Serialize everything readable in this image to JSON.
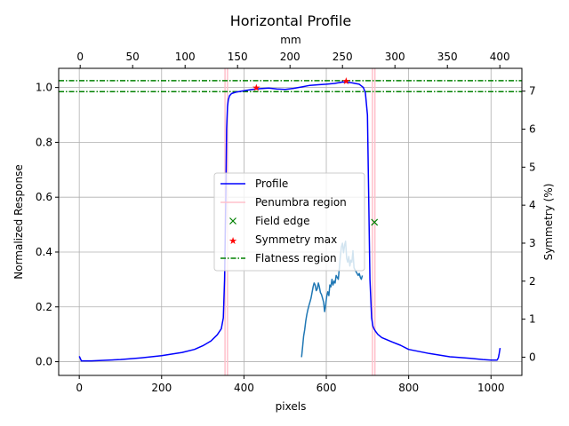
{
  "chart_data": {
    "type": "line",
    "title": "Horizontal Profile",
    "xlabel": "pixels",
    "ylabel": "Normalized Response",
    "x2label": "mm",
    "y2label": "Symmetry (%)",
    "xlim": [
      -50,
      1075
    ],
    "ylim": [
      -0.05,
      1.07
    ],
    "x2lim": [
      -20.5,
      421
    ],
    "y2lim": [
      -0.48,
      7.6
    ],
    "xticks": [
      0,
      200,
      400,
      600,
      800,
      1000
    ],
    "yticks": [
      0.0,
      0.2,
      0.4,
      0.6,
      0.8,
      1.0
    ],
    "x2ticks": [
      0,
      50,
      100,
      150,
      200,
      250,
      300,
      350,
      400
    ],
    "y2ticks": [
      0,
      1,
      2,
      3,
      4,
      5,
      6,
      7
    ],
    "grid": true,
    "legend_position": "center",
    "series": [
      {
        "name": "Profile",
        "color": "#0000ff",
        "axis": "primary",
        "x": [
          0,
          5,
          30,
          100,
          150,
          200,
          250,
          280,
          300,
          320,
          335,
          345,
          350,
          353,
          356,
          358,
          360,
          362,
          365,
          370,
          380,
          400,
          420,
          440,
          460,
          480,
          500,
          520,
          540,
          560,
          580,
          600,
          620,
          640,
          660,
          680,
          690,
          695,
          700,
          703,
          706,
          710,
          713,
          716,
          720,
          725,
          735,
          760,
          780,
          800,
          850,
          900,
          950,
          980,
          1000,
          1015,
          1018,
          1020,
          1022
        ],
        "y": [
          0.02,
          0.003,
          0.003,
          0.008,
          0.014,
          0.022,
          0.034,
          0.045,
          0.058,
          0.076,
          0.098,
          0.12,
          0.16,
          0.3,
          0.6,
          0.85,
          0.93,
          0.955,
          0.97,
          0.978,
          0.983,
          0.988,
          0.993,
          0.996,
          0.998,
          0.995,
          0.993,
          0.997,
          1.002,
          1.008,
          1.01,
          1.012,
          1.015,
          1.02,
          1.018,
          1.012,
          1.0,
          0.98,
          0.9,
          0.6,
          0.3,
          0.16,
          0.13,
          0.12,
          0.11,
          0.1,
          0.088,
          0.072,
          0.06,
          0.045,
          0.03,
          0.018,
          0.012,
          0.008,
          0.006,
          0.006,
          0.015,
          0.03,
          0.05
        ]
      },
      {
        "name": "Penumbra region",
        "color": "#ffc0cb",
        "axis": "primary",
        "type": "vlines",
        "x": [
          354,
          360,
          712,
          718
        ]
      },
      {
        "name": "Field edge",
        "color": "#008000",
        "axis": "secondary",
        "type": "marker",
        "x2": [
          280.5
        ],
        "y2": [
          3.55
        ]
      },
      {
        "name": "Symmetry max",
        "color": "#ff0000",
        "axis": "primary",
        "type": "marker",
        "x": [
          430,
          648
        ],
        "y": [
          1.0,
          1.025
        ]
      },
      {
        "name": "Flatness region",
        "color": "#008000",
        "axis": "primary",
        "type": "hlines",
        "y": [
          1.025,
          0.985
        ]
      },
      {
        "name": "",
        "color": "#1f77b4",
        "axis": "secondary",
        "x2": [
          211,
          212,
          213,
          214,
          215,
          216,
          217,
          218,
          219,
          220,
          221,
          222,
          223,
          224,
          225,
          226,
          227,
          228,
          229,
          230,
          231,
          232,
          233,
          234,
          235,
          236,
          237,
          238,
          239,
          240,
          241,
          242,
          243,
          244,
          245,
          246,
          247,
          248,
          249,
          250,
          251,
          252,
          253,
          254,
          255,
          256,
          257,
          258,
          259,
          260,
          261,
          262,
          263,
          264,
          265,
          266,
          267,
          268,
          269
        ],
        "y2": [
          0.0,
          0.28,
          0.55,
          0.72,
          0.95,
          1.12,
          1.25,
          1.35,
          1.45,
          1.55,
          1.7,
          1.85,
          1.95,
          1.9,
          1.75,
          1.8,
          1.95,
          1.85,
          1.7,
          1.65,
          1.55,
          1.45,
          1.2,
          1.38,
          1.6,
          1.72,
          1.62,
          1.9,
          1.85,
          2.05,
          1.9,
          2.0,
          1.95,
          2.15,
          2.1,
          2.05,
          2.35,
          2.65,
          2.9,
          3.0,
          2.75,
          2.95,
          3.05,
          2.6,
          2.5,
          2.65,
          2.4,
          2.55,
          2.5,
          2.8,
          2.35,
          2.3,
          2.25,
          2.2,
          2.15,
          2.2,
          2.1,
          2.05,
          2.15
        ]
      }
    ]
  }
}
